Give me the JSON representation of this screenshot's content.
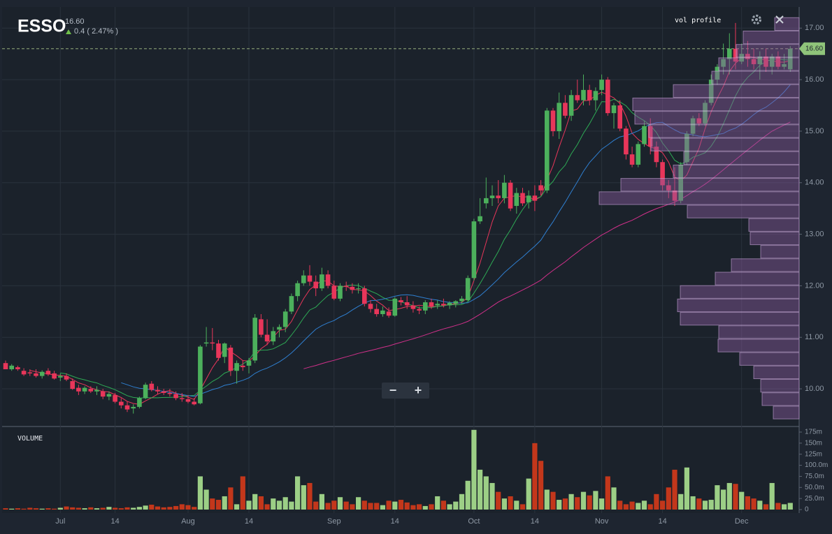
{
  "chart_data": {
    "type": "candlestick",
    "title": "ESSO",
    "change": "0.4 ( 2.47% )",
    "overlay_label": "vol profile",
    "volume_label": "VOLUME",
    "last_price": {
      "value": 16.6,
      "label": "16.60"
    },
    "zoom_controls": [
      "−",
      "+"
    ],
    "colors": {
      "up": "#4cb05c",
      "down": "#e8365a",
      "volume_up": "#9ccf86",
      "volume_down": "#c3371b",
      "profile": "#8a5a9e"
    },
    "ylim": [
      9.31,
      17.41
    ],
    "yticks": [
      {
        "value": 10,
        "label": "10.00"
      },
      {
        "value": 11,
        "label": "11.00"
      },
      {
        "value": 12,
        "label": "12.00"
      },
      {
        "value": 13,
        "label": "13.00"
      },
      {
        "value": 14,
        "label": "14.00"
      },
      {
        "value": 15,
        "label": "15.00"
      },
      {
        "value": 16,
        "label": "16.00"
      },
      {
        "value": 17,
        "label": "17.00"
      }
    ],
    "volume_ylim": [
      0,
      186
    ],
    "volume_ticks": [
      0,
      {
        "value": 25,
        "label": "25.0m"
      },
      {
        "value": 50,
        "label": "50.0m"
      },
      {
        "value": 75,
        "label": "75.0m"
      },
      {
        "value": 100,
        "label": "100.0m"
      },
      {
        "value": 125,
        "label": "125m"
      },
      {
        "value": 150,
        "label": "150m"
      },
      {
        "value": 175,
        "label": "175m"
      }
    ],
    "xticks": [
      {
        "value": 9,
        "label": "Jul"
      },
      {
        "value": 18,
        "label": "14"
      },
      {
        "value": 30,
        "label": "Aug"
      },
      {
        "value": 40,
        "label": "14"
      },
      {
        "value": 54,
        "label": "Sep"
      },
      {
        "value": 64,
        "label": "14"
      },
      {
        "value": 77,
        "label": "Oct"
      },
      {
        "value": 87,
        "label": "14"
      },
      {
        "value": 98,
        "label": "Nov"
      },
      {
        "value": 108,
        "label": "14"
      },
      {
        "value": 121,
        "label": "Dec"
      }
    ],
    "ohlc": [
      [
        10.5,
        10.55,
        10.38,
        10.38
      ],
      [
        10.38,
        10.48,
        10.35,
        10.45
      ],
      [
        10.42,
        10.45,
        10.35,
        10.38
      ],
      [
        10.35,
        10.4,
        10.25,
        10.28
      ],
      [
        10.32,
        10.38,
        10.25,
        10.3
      ],
      [
        10.3,
        10.38,
        10.22,
        10.25
      ],
      [
        10.25,
        10.36,
        10.2,
        10.33
      ],
      [
        10.35,
        10.4,
        10.25,
        10.28
      ],
      [
        10.3,
        10.35,
        10.18,
        10.2
      ],
      [
        10.22,
        10.3,
        10.15,
        10.25
      ],
      [
        10.25,
        10.3,
        10.15,
        10.18
      ],
      [
        10.15,
        10.2,
        9.98,
        10.0
      ],
      [
        10.02,
        10.08,
        9.88,
        9.95
      ],
      [
        9.95,
        10.05,
        9.9,
        10.02
      ],
      [
        10.0,
        10.05,
        9.92,
        9.95
      ],
      [
        9.95,
        10.05,
        9.88,
        9.98
      ],
      [
        9.95,
        10.0,
        9.8,
        9.85
      ],
      [
        9.85,
        9.95,
        9.78,
        9.9
      ],
      [
        9.88,
        9.92,
        9.72,
        9.75
      ],
      [
        9.75,
        9.82,
        9.62,
        9.68
      ],
      [
        9.68,
        9.75,
        9.55,
        9.6
      ],
      [
        9.62,
        9.7,
        9.52,
        9.65
      ],
      [
        9.65,
        9.85,
        9.62,
        9.82
      ],
      [
        9.82,
        10.12,
        9.8,
        10.08
      ],
      [
        10.1,
        10.15,
        9.95,
        9.98
      ],
      [
        9.98,
        10.05,
        9.9,
        9.95
      ],
      [
        9.95,
        10.0,
        9.88,
        9.92
      ],
      [
        9.92,
        10.0,
        9.85,
        9.9
      ],
      [
        9.9,
        9.95,
        9.78,
        9.82
      ],
      [
        9.82,
        9.92,
        9.75,
        9.8
      ],
      [
        9.8,
        9.88,
        9.72,
        9.75
      ],
      [
        9.75,
        9.82,
        9.68,
        9.7
      ],
      [
        9.72,
        10.85,
        9.7,
        10.82
      ],
      [
        10.88,
        11.2,
        10.82,
        10.9
      ],
      [
        10.9,
        11.18,
        10.75,
        10.88
      ],
      [
        10.88,
        10.95,
        10.55,
        10.6
      ],
      [
        10.62,
        10.9,
        10.5,
        10.88
      ],
      [
        10.8,
        10.85,
        10.25,
        10.35
      ],
      [
        10.35,
        10.55,
        10.1,
        10.5
      ],
      [
        10.45,
        10.55,
        10.35,
        10.42
      ],
      [
        10.45,
        10.6,
        10.3,
        10.55
      ],
      [
        10.55,
        11.45,
        10.5,
        11.38
      ],
      [
        11.35,
        11.45,
        11.0,
        11.05
      ],
      [
        11.05,
        11.35,
        10.85,
        10.92
      ],
      [
        10.92,
        11.2,
        10.85,
        11.12
      ],
      [
        11.15,
        11.25,
        11.0,
        11.2
      ],
      [
        11.2,
        11.55,
        11.1,
        11.5
      ],
      [
        11.5,
        11.85,
        11.45,
        11.8
      ],
      [
        11.8,
        12.1,
        11.7,
        12.05
      ],
      [
        12.05,
        12.3,
        12.0,
        12.2
      ],
      [
        12.2,
        12.4,
        12.0,
        12.08
      ],
      [
        12.08,
        12.2,
        11.8,
        11.95
      ],
      [
        11.95,
        12.35,
        11.9,
        12.22
      ],
      [
        12.22,
        12.3,
        11.95,
        12.0
      ],
      [
        12.0,
        12.1,
        11.72,
        11.75
      ],
      [
        11.75,
        12.05,
        11.7,
        12.0
      ],
      [
        12.0,
        12.08,
        11.9,
        11.98
      ],
      [
        11.98,
        12.05,
        11.85,
        11.92
      ],
      [
        11.95,
        12.05,
        11.85,
        11.95
      ],
      [
        11.95,
        12.0,
        11.6,
        11.65
      ],
      [
        11.65,
        11.72,
        11.48,
        11.55
      ],
      [
        11.55,
        11.65,
        11.4,
        11.45
      ],
      [
        11.45,
        11.6,
        11.4,
        11.52
      ],
      [
        11.5,
        11.58,
        11.38,
        11.42
      ],
      [
        11.42,
        11.78,
        11.4,
        11.75
      ],
      [
        11.72,
        11.78,
        11.62,
        11.68
      ],
      [
        11.68,
        11.8,
        11.55,
        11.62
      ],
      [
        11.62,
        11.7,
        11.48,
        11.55
      ],
      [
        11.55,
        11.6,
        11.45,
        11.52
      ],
      [
        11.52,
        11.72,
        11.45,
        11.68
      ],
      [
        11.68,
        11.75,
        11.55,
        11.6
      ],
      [
        11.62,
        11.72,
        11.55,
        11.65
      ],
      [
        11.65,
        11.75,
        11.58,
        11.62
      ],
      [
        11.62,
        11.7,
        11.55,
        11.67
      ],
      [
        11.65,
        11.72,
        11.58,
        11.7
      ],
      [
        11.7,
        11.8,
        11.65,
        11.75
      ],
      [
        11.72,
        12.2,
        11.7,
        12.15
      ],
      [
        12.15,
        13.3,
        12.1,
        13.25
      ],
      [
        13.25,
        13.7,
        13.2,
        13.35
      ],
      [
        13.6,
        14.1,
        13.5,
        13.7
      ],
      [
        13.7,
        13.95,
        13.55,
        13.75
      ],
      [
        13.75,
        14.05,
        13.6,
        13.7
      ],
      [
        13.7,
        14.15,
        13.6,
        14.0
      ],
      [
        14.0,
        14.05,
        13.45,
        13.5
      ],
      [
        13.55,
        13.9,
        13.4,
        13.8
      ],
      [
        13.8,
        13.9,
        13.55,
        13.6
      ],
      [
        13.62,
        13.85,
        13.5,
        13.75
      ],
      [
        13.75,
        13.95,
        13.45,
        13.65
      ],
      [
        13.95,
        14.05,
        13.75,
        13.85
      ],
      [
        13.85,
        15.45,
        13.8,
        15.4
      ],
      [
        15.4,
        15.45,
        14.9,
        15.0
      ],
      [
        15.0,
        15.75,
        14.85,
        15.55
      ],
      [
        15.55,
        15.7,
        15.25,
        15.3
      ],
      [
        15.3,
        15.8,
        15.2,
        15.7
      ],
      [
        15.7,
        16.0,
        15.55,
        15.6
      ],
      [
        15.6,
        16.1,
        15.5,
        15.8
      ],
      [
        15.8,
        15.9,
        15.5,
        15.6
      ],
      [
        15.6,
        15.85,
        15.4,
        15.78
      ],
      [
        15.8,
        16.1,
        15.7,
        16.0
      ],
      [
        16.0,
        16.05,
        15.3,
        15.35
      ],
      [
        15.35,
        15.55,
        15.05,
        15.5
      ],
      [
        15.5,
        15.6,
        15.0,
        15.05
      ],
      [
        15.05,
        15.1,
        14.45,
        14.55
      ],
      [
        14.55,
        14.7,
        14.3,
        14.35
      ],
      [
        14.35,
        14.8,
        14.3,
        14.75
      ],
      [
        14.75,
        15.2,
        14.7,
        15.1
      ],
      [
        15.1,
        15.25,
        14.55,
        14.7
      ],
      [
        14.7,
        14.8,
        14.3,
        14.4
      ],
      [
        14.4,
        14.45,
        13.85,
        13.95
      ],
      [
        13.95,
        14.05,
        13.7,
        13.85
      ],
      [
        13.85,
        14.3,
        13.55,
        13.65
      ],
      [
        13.65,
        14.4,
        13.6,
        14.35
      ],
      [
        14.4,
        15.0,
        14.35,
        14.95
      ],
      [
        14.95,
        15.3,
        14.9,
        15.25
      ],
      [
        15.25,
        15.35,
        15.1,
        15.15
      ],
      [
        15.15,
        15.6,
        15.1,
        15.55
      ],
      [
        15.55,
        16.1,
        15.5,
        16.0
      ],
      [
        16.0,
        16.3,
        15.9,
        16.25
      ],
      [
        16.25,
        16.7,
        16.1,
        16.4
      ],
      [
        16.4,
        16.9,
        16.1,
        16.6
      ],
      [
        16.6,
        17.1,
        16.2,
        16.35
      ],
      [
        16.35,
        16.7,
        16.3,
        16.5
      ],
      [
        16.5,
        16.75,
        16.25,
        16.4
      ],
      [
        16.4,
        16.6,
        16.2,
        16.3
      ],
      [
        16.3,
        16.55,
        16.0,
        16.45
      ],
      [
        16.45,
        16.6,
        16.15,
        16.25
      ],
      [
        16.25,
        16.5,
        16.1,
        16.45
      ],
      [
        16.45,
        16.55,
        16.2,
        16.25
      ],
      [
        16.25,
        16.5,
        16.2,
        16.3
      ],
      [
        16.2,
        16.65,
        16.15,
        16.6
      ]
    ],
    "volume": [
      3,
      2,
      3,
      2,
      4,
      3,
      2,
      3,
      2,
      4,
      7,
      5,
      4,
      3,
      5,
      3,
      4,
      6,
      4,
      3,
      5,
      4,
      6,
      9,
      11,
      7,
      5,
      6,
      8,
      12,
      10,
      6,
      75,
      45,
      25,
      22,
      30,
      50,
      12,
      75,
      20,
      35,
      30,
      12,
      25,
      20,
      28,
      18,
      75,
      55,
      60,
      18,
      35,
      15,
      20,
      28,
      18,
      12,
      28,
      20,
      15,
      15,
      10,
      20,
      18,
      22,
      16,
      10,
      12,
      8,
      12,
      30,
      20,
      12,
      18,
      35,
      65,
      180,
      90,
      75,
      60,
      40,
      25,
      30,
      20,
      12,
      70,
      150,
      110,
      45,
      40,
      22,
      25,
      35,
      28,
      40,
      32,
      42,
      25,
      75,
      50,
      20,
      12,
      18,
      15,
      20,
      12,
      35,
      20,
      50,
      90,
      35,
      95,
      30,
      25,
      20,
      22,
      55,
      45,
      60,
      58,
      40,
      30,
      25,
      20,
      12,
      60,
      15,
      12,
      15
    ],
    "vol_profile": {
      "bins": [
        9.41,
        9.67,
        9.93,
        10.19,
        10.45,
        10.71,
        10.97,
        11.23,
        11.49,
        11.75,
        12.01,
        12.27,
        12.53,
        12.79,
        13.05,
        13.31,
        13.57,
        13.83,
        14.09,
        14.35,
        14.61,
        14.87,
        15.13,
        15.39,
        15.65,
        15.91,
        16.17,
        16.43,
        16.69,
        16.95,
        17.21
      ],
      "values": [
        37,
        53,
        55,
        65,
        85,
        116,
        115,
        170,
        174,
        170,
        120,
        97,
        55,
        70,
        72,
        160,
        286,
        255,
        180,
        165,
        212,
        215,
        235,
        238,
        180,
        125,
        115,
        90,
        80,
        35
      ]
    }
  }
}
